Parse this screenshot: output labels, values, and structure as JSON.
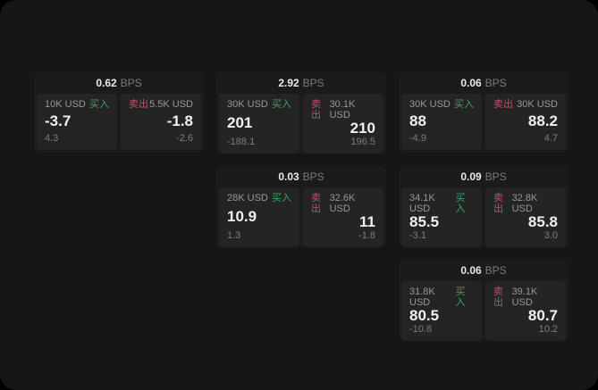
{
  "colors": {
    "page_bg": "#000000",
    "window_bg": "#161616",
    "card_bg": "#1b1b1b",
    "panel_bg": "#242424",
    "buy_green": "#36a563",
    "sell_red": "#c04f68"
  },
  "labels": {
    "bps_unit": "BPS",
    "buy": "买入",
    "sell": "卖出"
  },
  "cards": [
    {
      "bps": "0.62",
      "buy": {
        "amount": "10K USD",
        "value": "-3.7",
        "sub": "4.3"
      },
      "sell": {
        "amount": "5.5K USD",
        "value": "-1.8",
        "sub": "-2.6"
      }
    },
    {
      "bps": "2.92",
      "buy": {
        "amount": "30K USD",
        "value": "201",
        "sub": "-188.1"
      },
      "sell": {
        "amount": "30.1K USD",
        "value": "210",
        "sub": "196.5"
      }
    },
    {
      "bps": "0.06",
      "buy": {
        "amount": "30K USD",
        "value": "88",
        "sub": "-4.9"
      },
      "sell": {
        "amount": "30K USD",
        "value": "88.2",
        "sub": "4.7"
      }
    },
    {
      "bps": "0.03",
      "buy": {
        "amount": "28K USD",
        "value": "10.9",
        "sub": "1.3"
      },
      "sell": {
        "amount": "32.6K USD",
        "value": "11",
        "sub": "-1.8"
      }
    },
    {
      "bps": "0.09",
      "buy": {
        "amount": "34.1K USD",
        "value": "85.5",
        "sub": "-3.1"
      },
      "sell": {
        "amount": "32.8K USD",
        "value": "85.8",
        "sub": "3.0"
      }
    },
    {
      "bps": "0.06",
      "buy": {
        "amount": "31.8K USD",
        "value": "80.5",
        "sub": "-10.8"
      },
      "sell": {
        "amount": "39.1K USD",
        "value": "80.7",
        "sub": "10.2"
      }
    }
  ]
}
